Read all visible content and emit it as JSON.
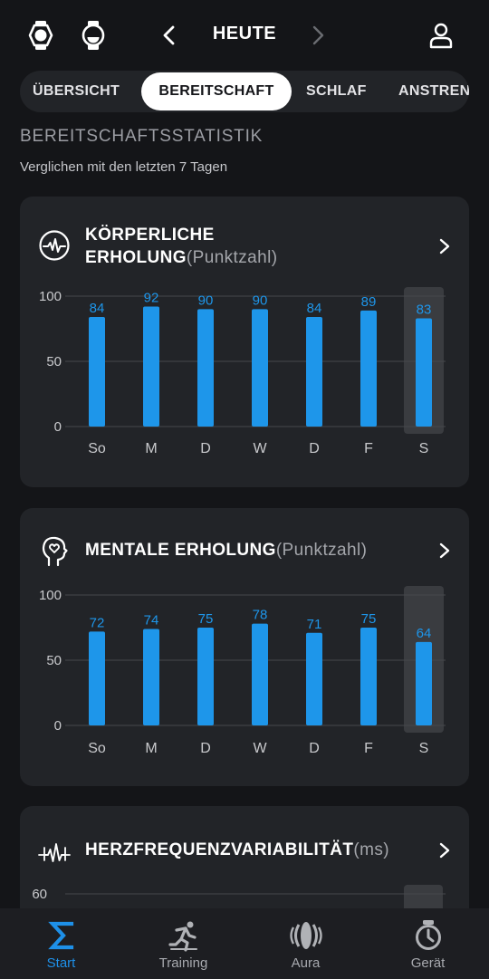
{
  "header": {
    "title": "HEUTE"
  },
  "tabs": [
    {
      "label": "ÜBERSICHT",
      "active": false
    },
    {
      "label": "BEREITSCHAFT",
      "active": true
    },
    {
      "label": "SCHLAF",
      "active": false
    },
    {
      "label": "ANSTREN",
      "active": false
    }
  ],
  "section": {
    "title": "BEREITSCHAFTSSTATISTIK",
    "subtitle": "Verglichen mit den letzten 7 Tagen"
  },
  "colors": {
    "bar": "#1e96ea",
    "accent": "#1e90e8",
    "highlight": "#3a3c40"
  },
  "cards": [
    {
      "title_line1": "KÖRPERLICHE",
      "title_line2": "ERHOLUNG",
      "unit": "(Punktzahl)",
      "icon": "waveform-circle-icon"
    },
    {
      "title": "MENTALE ERHOLUNG",
      "unit": "(Punktzahl)",
      "icon": "head-heart-icon"
    },
    {
      "title": "HERZFREQUENZVARIABILITÄT",
      "unit": "(ms)",
      "icon": "hrv-pulse-icon",
      "visible_tick": "60"
    }
  ],
  "chart_data": [
    {
      "type": "bar",
      "categories": [
        "So",
        "M",
        "D",
        "W",
        "D",
        "F",
        "S"
      ],
      "values": [
        84,
        92,
        90,
        90,
        84,
        89,
        83
      ],
      "yticks": [
        100,
        50,
        0
      ],
      "ylim": [
        0,
        100
      ],
      "highlight_index": 6,
      "data_labels": true
    },
    {
      "type": "bar",
      "categories": [
        "So",
        "M",
        "D",
        "W",
        "D",
        "F",
        "S"
      ],
      "values": [
        72,
        74,
        75,
        78,
        71,
        75,
        64
      ],
      "yticks": [
        100,
        50,
        0
      ],
      "ylim": [
        0,
        100
      ],
      "highlight_index": 6,
      "data_labels": true
    }
  ],
  "bottom_nav": [
    {
      "label": "Start",
      "icon": "sigma-icon",
      "active": true
    },
    {
      "label": "Training",
      "icon": "runner-icon",
      "active": false
    },
    {
      "label": "Aura",
      "icon": "aura-rings-icon",
      "active": false
    },
    {
      "label": "Gerät",
      "icon": "stopwatch-icon",
      "active": false
    }
  ]
}
